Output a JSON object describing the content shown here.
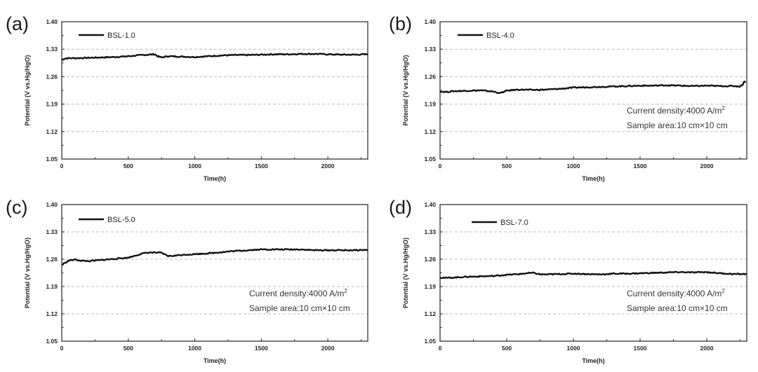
{
  "annotations": {
    "current_density": "Current density:4000 A/m",
    "current_density_sup": "2",
    "sample_area": "Sample area:10 cm×10 cm"
  },
  "chart_data": [
    {
      "panel": "(a)",
      "type": "line",
      "legend": "BSL-1.0",
      "xlabel": "Time(h)",
      "ylabel": "Potential (V vs.Hg/HgO)",
      "xlim": [
        0,
        2300
      ],
      "ylim": [
        1.05,
        1.4
      ],
      "xticks": [
        0,
        500,
        1000,
        1500,
        2000
      ],
      "yticks": [
        "1.05",
        "1.12",
        "1.19",
        "1.26",
        "1.33",
        "1.40"
      ],
      "grid_y": [
        1.12,
        1.19,
        1.26,
        1.33
      ],
      "show_annotation": false,
      "series": [
        {
          "name": "BSL-1.0",
          "x": [
            0,
            20,
            50,
            100,
            200,
            300,
            400,
            500,
            600,
            700,
            720,
            750,
            800,
            900,
            1000,
            1100,
            1200,
            1300,
            1400,
            1500,
            1600,
            1700,
            1800,
            1900,
            2000,
            2100,
            2200,
            2300
          ],
          "y": [
            1.302,
            1.306,
            1.307,
            1.307,
            1.308,
            1.309,
            1.31,
            1.312,
            1.315,
            1.317,
            1.312,
            1.309,
            1.312,
            1.311,
            1.31,
            1.312,
            1.314,
            1.315,
            1.315,
            1.316,
            1.317,
            1.317,
            1.318,
            1.318,
            1.317,
            1.316,
            1.316,
            1.317
          ]
        }
      ]
    },
    {
      "panel": "(b)",
      "type": "line",
      "legend": "BSL-4.0",
      "xlabel": "Time(h)",
      "ylabel": "Potential (V vs.Hg/HgO)",
      "xlim": [
        0,
        2300
      ],
      "ylim": [
        1.05,
        1.4
      ],
      "xticks": [
        0,
        500,
        1000,
        1500,
        2000
      ],
      "yticks": [
        "1.05",
        "1.12",
        "1.19",
        "1.26",
        "1.33",
        "1.40"
      ],
      "grid_y": [
        1.12,
        1.19,
        1.26,
        1.33
      ],
      "show_annotation": true,
      "series": [
        {
          "name": "BSL-4.0",
          "x": [
            0,
            50,
            100,
            200,
            300,
            400,
            450,
            500,
            550,
            600,
            700,
            800,
            900,
            1000,
            1100,
            1200,
            1300,
            1400,
            1500,
            1600,
            1700,
            1800,
            1900,
            2000,
            2100,
            2200,
            2250,
            2270,
            2280,
            2290
          ],
          "y": [
            1.222,
            1.221,
            1.223,
            1.224,
            1.225,
            1.222,
            1.218,
            1.224,
            1.226,
            1.227,
            1.226,
            1.227,
            1.229,
            1.232,
            1.233,
            1.234,
            1.235,
            1.236,
            1.237,
            1.237,
            1.238,
            1.237,
            1.236,
            1.237,
            1.236,
            1.236,
            1.235,
            1.24,
            1.248,
            1.245
          ]
        }
      ]
    },
    {
      "panel": "(c)",
      "type": "line",
      "legend": "BSL-5.0",
      "xlabel": "Time(h)",
      "ylabel": "Potential (V vs.Hg/HgO)",
      "xlim": [
        0,
        2300
      ],
      "ylim": [
        1.05,
        1.4
      ],
      "xticks": [
        0,
        500,
        1000,
        1500,
        2000
      ],
      "yticks": [
        "1.05",
        "1.12",
        "1.19",
        "1.26",
        "1.33",
        "1.40"
      ],
      "grid_y": [
        1.12,
        1.19,
        1.26,
        1.33
      ],
      "show_annotation": true,
      "series": [
        {
          "name": "BSL-5.0",
          "x": [
            0,
            30,
            60,
            100,
            150,
            200,
            300,
            400,
            500,
            550,
            600,
            650,
            700,
            750,
            800,
            850,
            900,
            1000,
            1100,
            1200,
            1300,
            1400,
            1500,
            1600,
            1700,
            1800,
            1900,
            2000,
            2100,
            2200,
            2300
          ],
          "y": [
            1.245,
            1.252,
            1.257,
            1.259,
            1.256,
            1.255,
            1.258,
            1.261,
            1.264,
            1.269,
            1.274,
            1.277,
            1.277,
            1.276,
            1.268,
            1.269,
            1.271,
            1.273,
            1.275,
            1.278,
            1.281,
            1.283,
            1.285,
            1.285,
            1.285,
            1.285,
            1.283,
            1.283,
            1.283,
            1.283,
            1.284
          ]
        }
      ]
    },
    {
      "panel": "(d)",
      "type": "line",
      "legend": "BSL-7.0",
      "xlabel": "Time(h)",
      "ylabel": "Potential (V vs.Hg/HgO)",
      "xlim": [
        0,
        2300
      ],
      "ylim": [
        1.05,
        1.4
      ],
      "xticks": [
        0,
        500,
        1000,
        1500,
        2000
      ],
      "yticks": [
        "1.05",
        "1.12",
        "1.19",
        "1.26",
        "1.33",
        "1.40"
      ],
      "grid_y": [
        1.12,
        1.19,
        1.26,
        1.33
      ],
      "show_annotation": true,
      "series": [
        {
          "name": "BSL-7.0",
          "x": [
            0,
            50,
            100,
            200,
            300,
            400,
            500,
            600,
            650,
            700,
            750,
            800,
            900,
            1000,
            1100,
            1200,
            1300,
            1400,
            1500,
            1600,
            1700,
            1800,
            1900,
            2000,
            2100,
            2200,
            2300
          ],
          "y": [
            1.213,
            1.212,
            1.213,
            1.215,
            1.216,
            1.217,
            1.22,
            1.222,
            1.224,
            1.225,
            1.221,
            1.221,
            1.222,
            1.223,
            1.222,
            1.221,
            1.223,
            1.223,
            1.224,
            1.225,
            1.226,
            1.227,
            1.226,
            1.227,
            1.224,
            1.222,
            1.222
          ]
        }
      ]
    }
  ]
}
